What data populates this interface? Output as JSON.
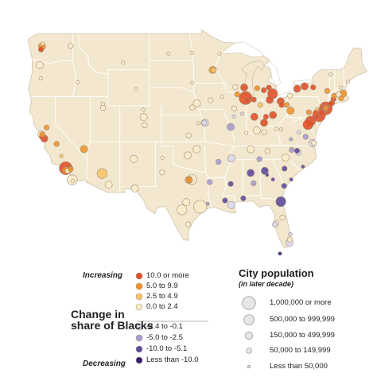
{
  "colors": {
    "land": "#f3e8cf",
    "state_border": "#ffffff",
    "coast": "#c9bea5",
    "water": "#ffffff",
    "circle_stroke": "#9e8f79"
  },
  "categories": [
    {
      "key": "c1",
      "label": "10.0 or more",
      "color": "#e0512a"
    },
    {
      "key": "c2",
      "label": "5.0 to 9.9",
      "color": "#f1942c"
    },
    {
      "key": "c3",
      "label": "2.5 to 4.9",
      "color": "#f7c46c"
    },
    {
      "key": "c4",
      "label": "0.0 to 2.4",
      "color": "#faebc9"
    },
    {
      "key": "d1",
      "label": "-2.4 to -0.1",
      "color": "#dcd7ee"
    },
    {
      "key": "d2",
      "label": "-5.0 to -2.5",
      "color": "#a79ccf"
    },
    {
      "key": "d3",
      "label": "-10.0 to -5.1",
      "color": "#5e4b9c"
    },
    {
      "key": "d4",
      "label": "Less than -10.0",
      "color": "#3a1a6e"
    }
  ],
  "legend": {
    "increasing_label": "Increasing",
    "decreasing_label": "Decreasing",
    "change_title_line1": "Change in",
    "change_title_line2": "share of Blacks",
    "population_title": "City population",
    "population_subtitle": "(in later decade)",
    "population_classes": [
      "1,000,000 or more",
      "500,000 to 999,999",
      "150,000 to 499,999",
      "50,000 to 149,999",
      "Less than 50,000"
    ]
  },
  "cities": [
    {
      "lng": -122.4,
      "lat": 37.8,
      "size": 3,
      "cat": "c4"
    },
    {
      "lng": -122.3,
      "lat": 37.55,
      "size": 2,
      "cat": "c1"
    },
    {
      "lng": -121.9,
      "lat": 37.35,
      "size": 3,
      "cat": "c1"
    },
    {
      "lng": -122.27,
      "lat": 37.8,
      "size": 2,
      "cat": "c2"
    },
    {
      "lng": -121.5,
      "lat": 38.58,
      "size": 2,
      "cat": "c2"
    },
    {
      "lng": -119.8,
      "lat": 36.75,
      "size": 2,
      "cat": "c2"
    },
    {
      "lng": -119.0,
      "lat": 35.4,
      "size": 1,
      "cat": "c3"
    },
    {
      "lng": -118.25,
      "lat": 34.05,
      "size": 5,
      "cat": "c1"
    },
    {
      "lng": -118.2,
      "lat": 33.8,
      "size": 3,
      "cat": "c2"
    },
    {
      "lng": -117.9,
      "lat": 33.75,
      "size": 2,
      "cat": "c4"
    },
    {
      "lng": -117.4,
      "lat": 33.95,
      "size": 2,
      "cat": "c2"
    },
    {
      "lng": -117.15,
      "lat": 32.75,
      "size": 4,
      "cat": "c4"
    },
    {
      "lng": -117.05,
      "lat": 32.62,
      "size": 1,
      "cat": "c4"
    },
    {
      "lng": -122.3,
      "lat": 47.6,
      "size": 3,
      "cat": "c2"
    },
    {
      "lng": -122.45,
      "lat": 47.25,
      "size": 2,
      "cat": "c1"
    },
    {
      "lng": -122.2,
      "lat": 47.9,
      "size": 1,
      "cat": "c4"
    },
    {
      "lng": -122.68,
      "lat": 45.52,
      "size": 3,
      "cat": "c4"
    },
    {
      "lng": -122.5,
      "lat": 44.05,
      "size": 1,
      "cat": "c4"
    },
    {
      "lng": -117.4,
      "lat": 47.65,
      "size": 2,
      "cat": "c4"
    },
    {
      "lng": -116.2,
      "lat": 43.6,
      "size": 1,
      "cat": "c4"
    },
    {
      "lng": -111.9,
      "lat": 40.76,
      "size": 2,
      "cat": "c4"
    },
    {
      "lng": -111.95,
      "lat": 41.2,
      "size": 1,
      "cat": "c4"
    },
    {
      "lng": -115.15,
      "lat": 36.17,
      "size": 3,
      "cat": "c2"
    },
    {
      "lng": -112.07,
      "lat": 33.45,
      "size": 4,
      "cat": "c3"
    },
    {
      "lng": -110.95,
      "lat": 32.22,
      "size": 3,
      "cat": "c4"
    },
    {
      "lng": -106.65,
      "lat": 35.08,
      "size": 3,
      "cat": "c4"
    },
    {
      "lng": -106.5,
      "lat": 31.8,
      "size": 3,
      "cat": "c4"
    },
    {
      "lng": -104.98,
      "lat": 39.74,
      "size": 3,
      "cat": "c4"
    },
    {
      "lng": -104.82,
      "lat": 38.83,
      "size": 2,
      "cat": "c4"
    },
    {
      "lng": -105.05,
      "lat": 40.55,
      "size": 1,
      "cat": "c4"
    },
    {
      "lng": -108.5,
      "lat": 45.78,
      "size": 1,
      "cat": "c4"
    },
    {
      "lng": -106.3,
      "lat": 42.85,
      "size": 1,
      "cat": "c4"
    },
    {
      "lng": -96.8,
      "lat": 46.88,
      "size": 1,
      "cat": "c4"
    },
    {
      "lng": -100.78,
      "lat": 46.8,
      "size": 1,
      "cat": "c4"
    },
    {
      "lng": -96.73,
      "lat": 43.55,
      "size": 1,
      "cat": "c4"
    },
    {
      "lng": -95.95,
      "lat": 41.26,
      "size": 3,
      "cat": "c4"
    },
    {
      "lng": -96.7,
      "lat": 40.81,
      "size": 2,
      "cat": "c4"
    },
    {
      "lng": -97.35,
      "lat": 37.69,
      "size": 2,
      "cat": "c4"
    },
    {
      "lng": -95.68,
      "lat": 39.05,
      "size": 1,
      "cat": "c4"
    },
    {
      "lng": -94.58,
      "lat": 39.1,
      "size": 3,
      "cat": "d1"
    },
    {
      "lng": -94.7,
      "lat": 39.11,
      "size": 2,
      "cat": "d1"
    },
    {
      "lng": -97.52,
      "lat": 35.47,
      "size": 3,
      "cat": "c4"
    },
    {
      "lng": -95.99,
      "lat": 36.15,
      "size": 3,
      "cat": "c4"
    },
    {
      "lng": -96.8,
      "lat": 32.78,
      "size": 4,
      "cat": "c4"
    },
    {
      "lng": -97.33,
      "lat": 32.75,
      "size": 3,
      "cat": "c2"
    },
    {
      "lng": -97.12,
      "lat": 32.73,
      "size": 2,
      "cat": "c2"
    },
    {
      "lng": -97.74,
      "lat": 30.27,
      "size": 3,
      "cat": "c4"
    },
    {
      "lng": -98.49,
      "lat": 29.42,
      "size": 4,
      "cat": "c4"
    },
    {
      "lng": -95.37,
      "lat": 29.76,
      "size": 5,
      "cat": "c4"
    },
    {
      "lng": -97.4,
      "lat": 27.8,
      "size": 2,
      "cat": "c4"
    },
    {
      "lng": -101.85,
      "lat": 33.58,
      "size": 2,
      "cat": "c4"
    },
    {
      "lng": -101.83,
      "lat": 35.22,
      "size": 1,
      "cat": "c4"
    },
    {
      "lng": -94.1,
      "lat": 30.08,
      "size": 1,
      "cat": "d2"
    },
    {
      "lng": -93.25,
      "lat": 44.98,
      "size": 3,
      "cat": "c2"
    },
    {
      "lng": -93.1,
      "lat": 44.95,
      "size": 2,
      "cat": "c3"
    },
    {
      "lng": -92.1,
      "lat": 46.78,
      "size": 1,
      "cat": "c4"
    },
    {
      "lng": -93.6,
      "lat": 41.6,
      "size": 2,
      "cat": "c4"
    },
    {
      "lng": -91.65,
      "lat": 41.98,
      "size": 1,
      "cat": "c4"
    },
    {
      "lng": -90.2,
      "lat": 38.63,
      "size": 3,
      "cat": "d2"
    },
    {
      "lng": -92.28,
      "lat": 34.75,
      "size": 2,
      "cat": "d2"
    },
    {
      "lng": -91.15,
      "lat": 30.45,
      "size": 2,
      "cat": "d3"
    },
    {
      "lng": -90.07,
      "lat": 29.95,
      "size": 3,
      "cat": "d1"
    },
    {
      "lng": -90.18,
      "lat": 32.3,
      "size": 2,
      "cat": "d3"
    },
    {
      "lng": -93.75,
      "lat": 32.5,
      "size": 2,
      "cat": "d2"
    },
    {
      "lng": -88.04,
      "lat": 30.69,
      "size": 2,
      "cat": "d3"
    },
    {
      "lng": -86.8,
      "lat": 33.52,
      "size": 3,
      "cat": "d3"
    },
    {
      "lng": -86.3,
      "lat": 32.37,
      "size": 2,
      "cat": "d2"
    },
    {
      "lng": -90.05,
      "lat": 35.15,
      "size": 3,
      "cat": "d1"
    },
    {
      "lng": -86.78,
      "lat": 36.16,
      "size": 3,
      "cat": "c4"
    },
    {
      "lng": -85.3,
      "lat": 35.05,
      "size": 2,
      "cat": "d2"
    },
    {
      "lng": -83.92,
      "lat": 35.96,
      "size": 2,
      "cat": "c4"
    },
    {
      "lng": -85.76,
      "lat": 38.25,
      "size": 3,
      "cat": "c4"
    },
    {
      "lng": -84.5,
      "lat": 38.05,
      "size": 2,
      "cat": "c4"
    },
    {
      "lng": -84.39,
      "lat": 33.75,
      "size": 3,
      "cat": "d3"
    },
    {
      "lng": -84.0,
      "lat": 33.3,
      "size": 1,
      "cat": "d3"
    },
    {
      "lng": -83.0,
      "lat": 32.8,
      "size": 1,
      "cat": "d3"
    },
    {
      "lng": -81.1,
      "lat": 32.08,
      "size": 2,
      "cat": "d3"
    },
    {
      "lng": -81.03,
      "lat": 34.0,
      "size": 2,
      "cat": "d3"
    },
    {
      "lng": -79.9,
      "lat": 32.78,
      "size": 1,
      "cat": "d3"
    },
    {
      "lng": -80.84,
      "lat": 35.23,
      "size": 3,
      "cat": "c4"
    },
    {
      "lng": -79.8,
      "lat": 36.07,
      "size": 2,
      "cat": "d2"
    },
    {
      "lng": -78.64,
      "lat": 35.78,
      "size": 2,
      "cat": "d1"
    },
    {
      "lng": -78.9,
      "lat": 35.99,
      "size": 2,
      "cat": "d3"
    },
    {
      "lng": -77.9,
      "lat": 34.22,
      "size": 1,
      "cat": "d3"
    },
    {
      "lng": -77.44,
      "lat": 37.54,
      "size": 2,
      "cat": "d2"
    },
    {
      "lng": -76.29,
      "lat": 36.85,
      "size": 3,
      "cat": "d1"
    },
    {
      "lng": -76.0,
      "lat": 36.85,
      "size": 2,
      "cat": "c4"
    },
    {
      "lng": -81.66,
      "lat": 30.33,
      "size": 4,
      "cat": "d3"
    },
    {
      "lng": -82.46,
      "lat": 27.95,
      "size": 2,
      "cat": "c4"
    },
    {
      "lng": -82.65,
      "lat": 27.77,
      "size": 2,
      "cat": "d1"
    },
    {
      "lng": -81.38,
      "lat": 28.54,
      "size": 2,
      "cat": "c4"
    },
    {
      "lng": -80.19,
      "lat": 25.77,
      "size": 3,
      "cat": "d1"
    },
    {
      "lng": -80.13,
      "lat": 26.12,
      "size": 2,
      "cat": "c4"
    },
    {
      "lng": -80.05,
      "lat": 26.7,
      "size": 1,
      "cat": "d1"
    },
    {
      "lng": -81.8,
      "lat": 24.55,
      "size": 1,
      "cat": "d4"
    },
    {
      "lng": -87.65,
      "lat": 41.85,
      "size": 5,
      "cat": "c1"
    },
    {
      "lng": -87.35,
      "lat": 41.6,
      "size": 2,
      "cat": "c1"
    },
    {
      "lng": -87.9,
      "lat": 43.04,
      "size": 3,
      "cat": "c1"
    },
    {
      "lng": -89.4,
      "lat": 43.07,
      "size": 2,
      "cat": "c4"
    },
    {
      "lng": -86.25,
      "lat": 41.68,
      "size": 2,
      "cat": "c1"
    },
    {
      "lng": -85.67,
      "lat": 42.96,
      "size": 2,
      "cat": "c2"
    },
    {
      "lng": -84.55,
      "lat": 42.73,
      "size": 2,
      "cat": "c1"
    },
    {
      "lng": -83.69,
      "lat": 43.01,
      "size": 2,
      "cat": "c1"
    },
    {
      "lng": -83.05,
      "lat": 42.33,
      "size": 4,
      "cat": "c1"
    },
    {
      "lng": -83.55,
      "lat": 41.65,
      "size": 3,
      "cat": "c1"
    },
    {
      "lng": -81.69,
      "lat": 41.5,
      "size": 3,
      "cat": "c1"
    },
    {
      "lng": -81.52,
      "lat": 41.08,
      "size": 2,
      "cat": "c1"
    },
    {
      "lng": -80.65,
      "lat": 41.1,
      "size": 2,
      "cat": "c2"
    },
    {
      "lng": -83.0,
      "lat": 39.96,
      "size": 3,
      "cat": "c1"
    },
    {
      "lng": -84.2,
      "lat": 39.76,
      "size": 2,
      "cat": "c1"
    },
    {
      "lng": -84.51,
      "lat": 39.1,
      "size": 3,
      "cat": "c1"
    },
    {
      "lng": -86.16,
      "lat": 39.77,
      "size": 3,
      "cat": "c1"
    },
    {
      "lng": -85.14,
      "lat": 41.08,
      "size": 2,
      "cat": "c3"
    },
    {
      "lng": -87.57,
      "lat": 37.97,
      "size": 1,
      "cat": "c4"
    },
    {
      "lng": -89.6,
      "lat": 40.69,
      "size": 2,
      "cat": "c4"
    },
    {
      "lng": -89.65,
      "lat": 39.8,
      "size": 1,
      "cat": "d1"
    },
    {
      "lng": -88.23,
      "lat": 40.1,
      "size": 1,
      "cat": "d1"
    },
    {
      "lng": -89.09,
      "lat": 42.27,
      "size": 2,
      "cat": "c2"
    },
    {
      "lng": -80.0,
      "lat": 40.44,
      "size": 3,
      "cat": "c2"
    },
    {
      "lng": -80.08,
      "lat": 42.13,
      "size": 2,
      "cat": "c4"
    },
    {
      "lng": -78.88,
      "lat": 42.89,
      "size": 3,
      "cat": "c1"
    },
    {
      "lng": -77.61,
      "lat": 43.16,
      "size": 3,
      "cat": "c1"
    },
    {
      "lng": -76.15,
      "lat": 43.05,
      "size": 2,
      "cat": "c1"
    },
    {
      "lng": -73.76,
      "lat": 42.65,
      "size": 2,
      "cat": "c2"
    },
    {
      "lng": -74.0,
      "lat": 40.71,
      "size": 5,
      "cat": "c1"
    },
    {
      "lng": -74.17,
      "lat": 40.73,
      "size": 3,
      "cat": "c1"
    },
    {
      "lng": -74.2,
      "lat": 40.66,
      "size": 2,
      "cat": "c1"
    },
    {
      "lng": -74.04,
      "lat": 40.73,
      "size": 2,
      "cat": "c2"
    },
    {
      "lng": -74.76,
      "lat": 40.22,
      "size": 2,
      "cat": "c1"
    },
    {
      "lng": -75.16,
      "lat": 39.95,
      "size": 5,
      "cat": "c1"
    },
    {
      "lng": -75.55,
      "lat": 39.74,
      "size": 2,
      "cat": "c1"
    },
    {
      "lng": -76.61,
      "lat": 39.29,
      "size": 4,
      "cat": "c1"
    },
    {
      "lng": -77.04,
      "lat": 38.9,
      "size": 4,
      "cat": "c1"
    },
    {
      "lng": -76.88,
      "lat": 40.27,
      "size": 2,
      "cat": "c2"
    },
    {
      "lng": -75.47,
      "lat": 40.6,
      "size": 1,
      "cat": "c3"
    },
    {
      "lng": -71.06,
      "lat": 42.36,
      "size": 3,
      "cat": "c2"
    },
    {
      "lng": -71.41,
      "lat": 41.82,
      "size": 2,
      "cat": "c2"
    },
    {
      "lng": -72.68,
      "lat": 41.76,
      "size": 2,
      "cat": "c1"
    },
    {
      "lng": -72.93,
      "lat": 41.31,
      "size": 2,
      "cat": "c1"
    },
    {
      "lng": -73.2,
      "lat": 41.18,
      "size": 2,
      "cat": "c1"
    },
    {
      "lng": -72.59,
      "lat": 42.1,
      "size": 2,
      "cat": "c2"
    },
    {
      "lng": -71.8,
      "lat": 42.26,
      "size": 2,
      "cat": "c4"
    },
    {
      "lng": -70.25,
      "lat": 43.66,
      "size": 1,
      "cat": "c4"
    },
    {
      "lng": -71.45,
      "lat": 43.0,
      "size": 1,
      "cat": "c4"
    },
    {
      "lng": -73.2,
      "lat": 44.48,
      "size": 1,
      "cat": "c4"
    },
    {
      "lng": -78.6,
      "lat": 38.05,
      "size": 1,
      "cat": "d1"
    },
    {
      "lng": -79.94,
      "lat": 37.27,
      "size": 1,
      "cat": "d2"
    },
    {
      "lng": -81.63,
      "lat": 38.35,
      "size": 1,
      "cat": "c4"
    },
    {
      "lng": -82.45,
      "lat": 38.42,
      "size": 1,
      "cat": "c4"
    }
  ]
}
